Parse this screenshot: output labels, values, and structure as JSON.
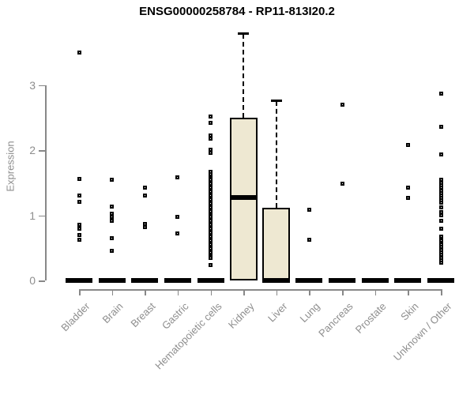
{
  "title": "ENSG00000258784 - RP11-813I20.2",
  "colors": {
    "box_fill": "#EEE8D2",
    "box_border": "#000000",
    "median": "#000000",
    "axis": "#888888",
    "tick_label": "#8e8e8e",
    "title": "#000000",
    "background": "#ffffff"
  },
  "chart_data": {
    "type": "boxplot",
    "title": "ENSG00000258784 - RP11-813I20.2",
    "xlabel": "",
    "ylabel": "Expression",
    "ylim": [
      0,
      3.9
    ],
    "yticks": [
      0,
      1,
      2,
      3
    ],
    "ytick_labels": [
      "0",
      "1",
      "2",
      "3"
    ],
    "grid": false,
    "legend": false,
    "categories": [
      "Bladder",
      "Brain",
      "Breast",
      "Gastric",
      "Hematopoietic cells",
      "Kidney",
      "Liver",
      "Lung",
      "Pancreas",
      "Prostate",
      "Skin",
      "Unknown / Other"
    ],
    "series": [
      {
        "name": "Bladder",
        "box": {
          "whisker_low": 0,
          "q1": 0,
          "median": 0,
          "q3": 0,
          "whisker_high": 0
        },
        "points": [
          3.5,
          1.56,
          1.3,
          1.21,
          0.85,
          0.79,
          0.7,
          0.63
        ]
      },
      {
        "name": "Brain",
        "box": {
          "whisker_low": 0,
          "q1": 0,
          "median": 0,
          "q3": 0,
          "whisker_high": 0
        },
        "points": [
          1.54,
          1.13,
          1.03,
          0.97,
          0.91,
          0.65,
          0.46
        ]
      },
      {
        "name": "Breast",
        "box": {
          "whisker_low": 0,
          "q1": 0,
          "median": 0,
          "q3": 0,
          "whisker_high": 0
        },
        "points": [
          1.43,
          1.3,
          0.87,
          0.82
        ]
      },
      {
        "name": "Gastric",
        "box": {
          "whisker_low": 0,
          "q1": 0,
          "median": 0,
          "q3": 0,
          "whisker_high": 0
        },
        "points": [
          1.58,
          0.97,
          0.72
        ]
      },
      {
        "name": "Hematopoietic cells",
        "box": {
          "whisker_low": 0,
          "q1": 0,
          "median": 0,
          "q3": 0,
          "whisker_high": 0
        },
        "points": [
          2.52,
          2.42,
          2.22,
          2.17,
          2.01,
          1.96,
          1.67,
          1.63,
          1.6,
          1.57,
          1.54,
          1.51,
          1.48,
          1.45,
          1.42,
          1.39,
          1.36,
          1.33,
          1.3,
          1.27,
          1.24,
          1.21,
          1.18,
          1.15,
          1.12,
          1.09,
          1.06,
          1.03,
          1.0,
          0.97,
          0.94,
          0.91,
          0.88,
          0.85,
          0.82,
          0.79,
          0.76,
          0.73,
          0.7,
          0.67,
          0.64,
          0.61,
          0.58,
          0.55,
          0.52,
          0.49,
          0.46,
          0.43,
          0.4,
          0.37,
          0.34,
          0.24
        ]
      },
      {
        "name": "Kidney",
        "box": {
          "whisker_low": 0,
          "q1": 0,
          "median": 1.27,
          "q3": 2.5,
          "whisker_high": 3.78
        },
        "points": []
      },
      {
        "name": "Liver",
        "box": {
          "whisker_low": 0,
          "q1": 0,
          "median": 0,
          "q3": 1.12,
          "whisker_high": 2.75
        },
        "points": []
      },
      {
        "name": "Lung",
        "box": {
          "whisker_low": 0,
          "q1": 0,
          "median": 0,
          "q3": 0,
          "whisker_high": 0
        },
        "points": [
          1.09,
          0.63
        ]
      },
      {
        "name": "Pancreas",
        "box": {
          "whisker_low": 0,
          "q1": 0,
          "median": 0,
          "q3": 0,
          "whisker_high": 0
        },
        "points": [
          2.7,
          1.49
        ]
      },
      {
        "name": "Prostate",
        "box": {
          "whisker_low": 0,
          "q1": 0,
          "median": 0,
          "q3": 0,
          "whisker_high": 0
        },
        "points": []
      },
      {
        "name": "Skin",
        "box": {
          "whisker_low": 0,
          "q1": 0,
          "median": 0,
          "q3": 0,
          "whisker_high": 0
        },
        "points": [
          2.08,
          1.43,
          1.27
        ]
      },
      {
        "name": "Unknown / Other",
        "box": {
          "whisker_low": 0,
          "q1": 0,
          "median": 0,
          "q3": 0,
          "whisker_high": 0
        },
        "points": [
          2.87,
          2.36,
          1.93,
          1.54,
          1.5,
          1.46,
          1.42,
          1.38,
          1.34,
          1.3,
          1.27,
          1.23,
          1.19,
          1.12,
          1.05,
          1.0,
          0.91,
          0.79,
          0.67,
          0.61,
          0.55,
          0.51,
          0.47,
          0.43,
          0.39,
          0.35,
          0.31,
          0.27
        ]
      }
    ]
  }
}
